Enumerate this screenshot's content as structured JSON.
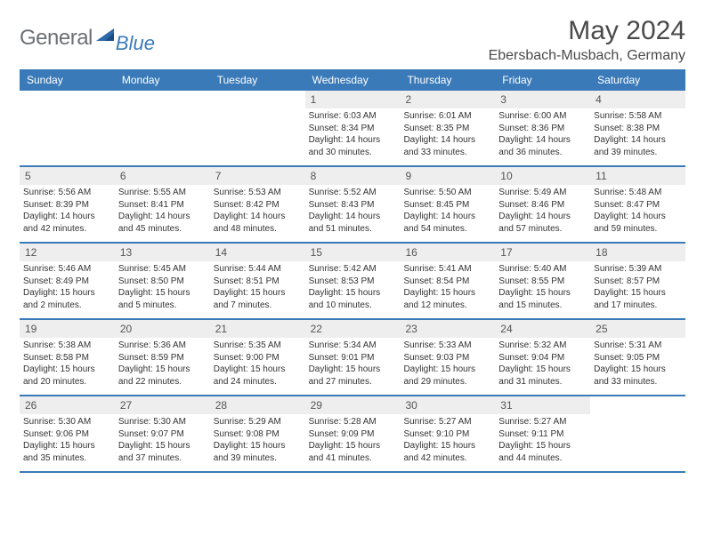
{
  "brand": {
    "text1": "General",
    "text2": "Blue"
  },
  "title": "May 2024",
  "location": "Ebersbach-Musbach, Germany",
  "colors": {
    "header_bg": "#3a7ab8",
    "header_text": "#ffffff",
    "daynum_bg": "#eeeeee",
    "body_text": "#333333",
    "border": "#3a7ab8",
    "title_color": "#4a4a4a",
    "logo_gray": "#6b7074",
    "logo_blue": "#3a7ab8",
    "page_bg": "#ffffff"
  },
  "dayNames": [
    "Sunday",
    "Monday",
    "Tuesday",
    "Wednesday",
    "Thursday",
    "Friday",
    "Saturday"
  ],
  "weeks": [
    [
      null,
      null,
      null,
      {
        "n": "1",
        "sr": "6:03 AM",
        "ss": "8:34 PM",
        "dl": "14 hours and 30 minutes."
      },
      {
        "n": "2",
        "sr": "6:01 AM",
        "ss": "8:35 PM",
        "dl": "14 hours and 33 minutes."
      },
      {
        "n": "3",
        "sr": "6:00 AM",
        "ss": "8:36 PM",
        "dl": "14 hours and 36 minutes."
      },
      {
        "n": "4",
        "sr": "5:58 AM",
        "ss": "8:38 PM",
        "dl": "14 hours and 39 minutes."
      }
    ],
    [
      {
        "n": "5",
        "sr": "5:56 AM",
        "ss": "8:39 PM",
        "dl": "14 hours and 42 minutes."
      },
      {
        "n": "6",
        "sr": "5:55 AM",
        "ss": "8:41 PM",
        "dl": "14 hours and 45 minutes."
      },
      {
        "n": "7",
        "sr": "5:53 AM",
        "ss": "8:42 PM",
        "dl": "14 hours and 48 minutes."
      },
      {
        "n": "8",
        "sr": "5:52 AM",
        "ss": "8:43 PM",
        "dl": "14 hours and 51 minutes."
      },
      {
        "n": "9",
        "sr": "5:50 AM",
        "ss": "8:45 PM",
        "dl": "14 hours and 54 minutes."
      },
      {
        "n": "10",
        "sr": "5:49 AM",
        "ss": "8:46 PM",
        "dl": "14 hours and 57 minutes."
      },
      {
        "n": "11",
        "sr": "5:48 AM",
        "ss": "8:47 PM",
        "dl": "14 hours and 59 minutes."
      }
    ],
    [
      {
        "n": "12",
        "sr": "5:46 AM",
        "ss": "8:49 PM",
        "dl": "15 hours and 2 minutes."
      },
      {
        "n": "13",
        "sr": "5:45 AM",
        "ss": "8:50 PM",
        "dl": "15 hours and 5 minutes."
      },
      {
        "n": "14",
        "sr": "5:44 AM",
        "ss": "8:51 PM",
        "dl": "15 hours and 7 minutes."
      },
      {
        "n": "15",
        "sr": "5:42 AM",
        "ss": "8:53 PM",
        "dl": "15 hours and 10 minutes."
      },
      {
        "n": "16",
        "sr": "5:41 AM",
        "ss": "8:54 PM",
        "dl": "15 hours and 12 minutes."
      },
      {
        "n": "17",
        "sr": "5:40 AM",
        "ss": "8:55 PM",
        "dl": "15 hours and 15 minutes."
      },
      {
        "n": "18",
        "sr": "5:39 AM",
        "ss": "8:57 PM",
        "dl": "15 hours and 17 minutes."
      }
    ],
    [
      {
        "n": "19",
        "sr": "5:38 AM",
        "ss": "8:58 PM",
        "dl": "15 hours and 20 minutes."
      },
      {
        "n": "20",
        "sr": "5:36 AM",
        "ss": "8:59 PM",
        "dl": "15 hours and 22 minutes."
      },
      {
        "n": "21",
        "sr": "5:35 AM",
        "ss": "9:00 PM",
        "dl": "15 hours and 24 minutes."
      },
      {
        "n": "22",
        "sr": "5:34 AM",
        "ss": "9:01 PM",
        "dl": "15 hours and 27 minutes."
      },
      {
        "n": "23",
        "sr": "5:33 AM",
        "ss": "9:03 PM",
        "dl": "15 hours and 29 minutes."
      },
      {
        "n": "24",
        "sr": "5:32 AM",
        "ss": "9:04 PM",
        "dl": "15 hours and 31 minutes."
      },
      {
        "n": "25",
        "sr": "5:31 AM",
        "ss": "9:05 PM",
        "dl": "15 hours and 33 minutes."
      }
    ],
    [
      {
        "n": "26",
        "sr": "5:30 AM",
        "ss": "9:06 PM",
        "dl": "15 hours and 35 minutes."
      },
      {
        "n": "27",
        "sr": "5:30 AM",
        "ss": "9:07 PM",
        "dl": "15 hours and 37 minutes."
      },
      {
        "n": "28",
        "sr": "5:29 AM",
        "ss": "9:08 PM",
        "dl": "15 hours and 39 minutes."
      },
      {
        "n": "29",
        "sr": "5:28 AM",
        "ss": "9:09 PM",
        "dl": "15 hours and 41 minutes."
      },
      {
        "n": "30",
        "sr": "5:27 AM",
        "ss": "9:10 PM",
        "dl": "15 hours and 42 minutes."
      },
      {
        "n": "31",
        "sr": "5:27 AM",
        "ss": "9:11 PM",
        "dl": "15 hours and 44 minutes."
      },
      null
    ]
  ],
  "labels": {
    "sunrise": "Sunrise:",
    "sunset": "Sunset:",
    "daylight": "Daylight:"
  }
}
